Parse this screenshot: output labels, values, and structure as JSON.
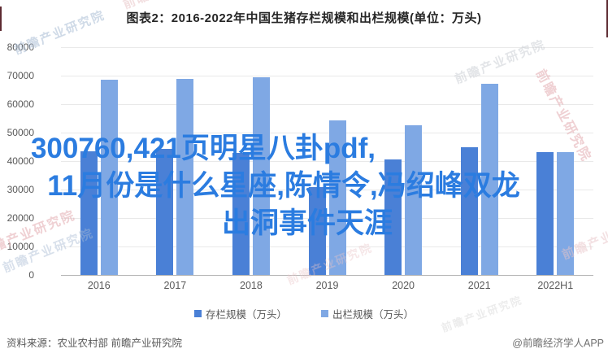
{
  "title": "图表2：2016-2022年中国生猪存栏规模和出栏规模(单位：万头)",
  "overlay": {
    "lines": [
      "300760,421页明星八卦pdf,",
      "11月份是什么星座,陈情令,冯绍峰双龙",
      "出洞事件天涯"
    ],
    "color": "#2b7ce0"
  },
  "chart_data": {
    "type": "bar",
    "categories": [
      "2016",
      "2017",
      "2018",
      "2019",
      "2020",
      "2021",
      "2022H1"
    ],
    "series": [
      {
        "name": "存栏规模（万头）",
        "color": "#4a80d6",
        "values": [
          43500,
          44200,
          42800,
          31000,
          40650,
          44900,
          43100
        ]
      },
      {
        "name": "出栏规模（万头）",
        "color": "#7fa8e4",
        "values": [
          68500,
          68900,
          69400,
          54400,
          52700,
          67100,
          43100
        ]
      }
    ],
    "title": "图表2：2016-2022年中国生猪存栏规模和出栏规模(单位：万头)",
    "xlabel": "",
    "ylabel": "",
    "ylim": [
      0,
      80000
    ],
    "ytick_step": 10000,
    "grid": true,
    "legend_position": "bottom"
  },
  "watermark_text": "前瞻产业研究院",
  "footer": {
    "source": "资料来源：农业农村部 前瞻产业研究院",
    "credit": "@前瞻经济学人APP"
  }
}
